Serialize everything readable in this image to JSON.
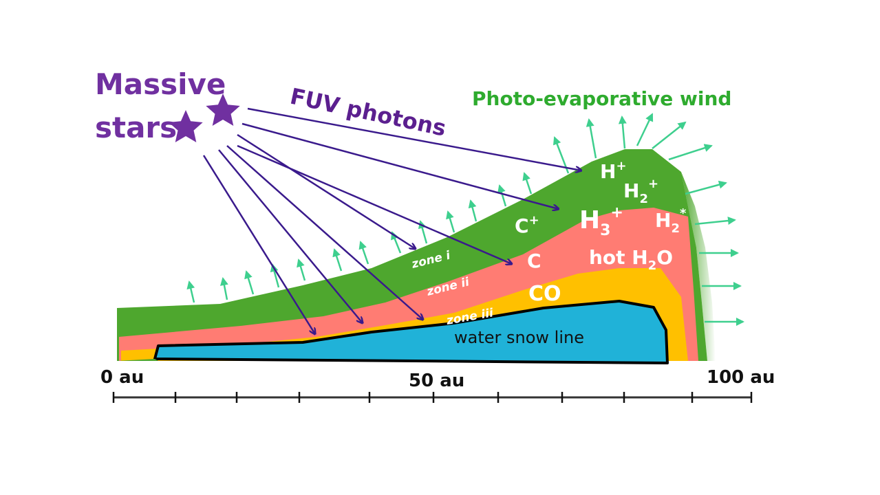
{
  "labels": {
    "massive": "Massive",
    "stars": "stars",
    "fuv_photons": "FUV photons",
    "wind": "Photo-evaporative wind",
    "species": {
      "h_plus": "H",
      "h_plus_sup": "+",
      "h2_plus": "H",
      "h2_plus_sub": "2",
      "h2_plus_sup": "+",
      "c_plus": "C",
      "c_plus_sup": "+",
      "h3_plus": "H",
      "h3_plus_sub": "3",
      "h3_plus_sup": "+",
      "h2_star": "H",
      "h2_star_sub": "2",
      "h2_star_sup": "*",
      "c": "C",
      "hot_h2o_pre": "hot H",
      "hot_h2o_sub": "2",
      "hot_h2o_post": "O",
      "co": "CO"
    },
    "zones": {
      "zone_i": "zone i",
      "zone_ii": "zone ii",
      "zone_iii": "zone iii"
    },
    "snow_line": "water snow line"
  },
  "axis": {
    "ticks": [
      "0 au",
      "50 au",
      "100 au"
    ],
    "range": [
      0,
      100
    ],
    "unit": "au"
  },
  "colors": {
    "stars": "#7030a0",
    "fuv_text": "#5b1f8f",
    "photon_arrow": "#3a1a8c",
    "wind_text": "#2eab2e",
    "wind_arrow": "#3ecf8e",
    "zone_i": "#4ea72e",
    "zone_ii": "#ff7c73",
    "zone_iii": "#ffc000",
    "snow": "#20b2d8",
    "outline": "#000000"
  }
}
